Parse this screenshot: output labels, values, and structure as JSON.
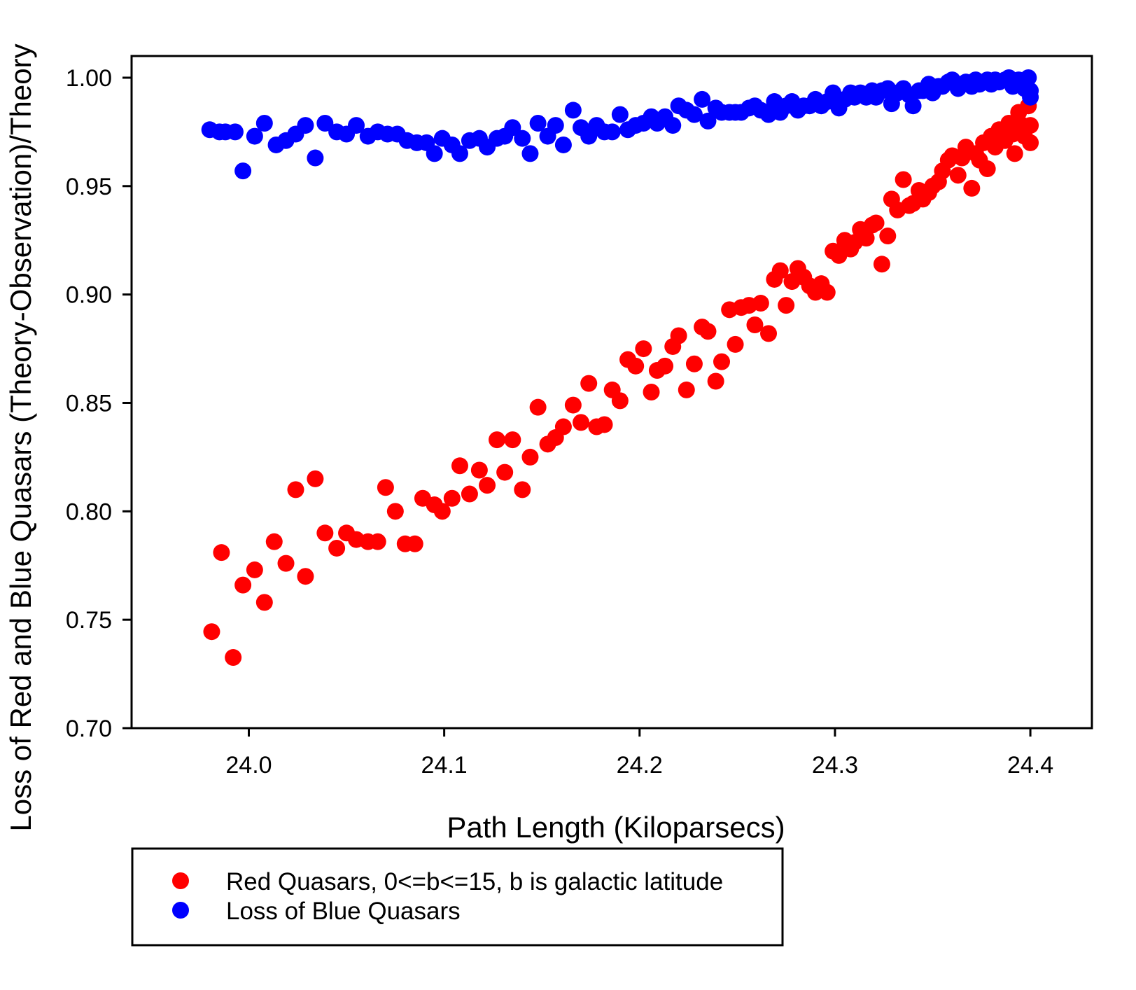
{
  "chart_data": {
    "type": "scatter",
    "title": "",
    "xlabel": "Path Length (Kiloparsecs)",
    "ylabel": "Loss of Red and Blue Quasars (Theory-Observation)/Theory",
    "xlim": [
      23.94,
      24.4315
    ],
    "ylim": [
      0.7,
      1.01
    ],
    "xticks": [
      24.0,
      24.1,
      24.2,
      24.3,
      24.4
    ],
    "xtick_labels": [
      "24.0",
      "24.1",
      "24.2",
      "24.3",
      "24.4"
    ],
    "yticks": [
      0.7,
      0.75,
      0.8,
      0.85,
      0.9,
      0.95,
      1.0
    ],
    "ytick_labels": [
      "0.70",
      "0.75",
      "0.80",
      "0.85",
      "0.90",
      "0.95",
      "1.00"
    ],
    "grid": false,
    "legend_placement": "bottom-left, below plot",
    "series": [
      {
        "name": "Red Quasars, 0<=b<=15, b is galactic latitude",
        "color": "#ff0000",
        "points": [
          [
            23.981,
            0.7445
          ],
          [
            23.992,
            0.7326
          ],
          [
            23.986,
            0.781
          ],
          [
            23.997,
            0.766
          ],
          [
            24.003,
            0.773
          ],
          [
            24.008,
            0.758
          ],
          [
            24.013,
            0.786
          ],
          [
            24.019,
            0.776
          ],
          [
            24.024,
            0.81
          ],
          [
            24.029,
            0.77
          ],
          [
            24.034,
            0.815
          ],
          [
            24.039,
            0.79
          ],
          [
            24.045,
            0.783
          ],
          [
            24.05,
            0.79
          ],
          [
            24.055,
            0.787
          ],
          [
            24.061,
            0.786
          ],
          [
            24.066,
            0.786
          ],
          [
            24.07,
            0.811
          ],
          [
            24.075,
            0.8
          ],
          [
            24.08,
            0.785
          ],
          [
            24.085,
            0.785
          ],
          [
            24.089,
            0.806
          ],
          [
            24.095,
            0.803
          ],
          [
            24.099,
            0.8
          ],
          [
            24.104,
            0.806
          ],
          [
            24.108,
            0.821
          ],
          [
            24.113,
            0.808
          ],
          [
            24.118,
            0.819
          ],
          [
            24.122,
            0.812
          ],
          [
            24.127,
            0.833
          ],
          [
            24.131,
            0.818
          ],
          [
            24.135,
            0.833
          ],
          [
            24.14,
            0.81
          ],
          [
            24.144,
            0.825
          ],
          [
            24.148,
            0.848
          ],
          [
            24.153,
            0.831
          ],
          [
            24.157,
            0.834
          ],
          [
            24.161,
            0.839
          ],
          [
            24.166,
            0.849
          ],
          [
            24.17,
            0.841
          ],
          [
            24.174,
            0.859
          ],
          [
            24.178,
            0.839
          ],
          [
            24.182,
            0.84
          ],
          [
            24.186,
            0.856
          ],
          [
            24.19,
            0.851
          ],
          [
            24.194,
            0.87
          ],
          [
            24.198,
            0.867
          ],
          [
            24.202,
            0.875
          ],
          [
            24.206,
            0.855
          ],
          [
            24.209,
            0.865
          ],
          [
            24.213,
            0.867
          ],
          [
            24.217,
            0.876
          ],
          [
            24.22,
            0.881
          ],
          [
            24.224,
            0.856
          ],
          [
            24.228,
            0.868
          ],
          [
            24.232,
            0.885
          ],
          [
            24.235,
            0.883
          ],
          [
            24.239,
            0.86
          ],
          [
            24.242,
            0.869
          ],
          [
            24.246,
            0.893
          ],
          [
            24.249,
            0.877
          ],
          [
            24.252,
            0.894
          ],
          [
            24.256,
            0.895
          ],
          [
            24.259,
            0.886
          ],
          [
            24.262,
            0.896
          ],
          [
            24.266,
            0.882
          ],
          [
            24.269,
            0.907
          ],
          [
            24.272,
            0.911
          ],
          [
            24.275,
            0.895
          ],
          [
            24.278,
            0.906
          ],
          [
            24.281,
            0.912
          ],
          [
            24.284,
            0.908
          ],
          [
            24.287,
            0.904
          ],
          [
            24.29,
            0.901
          ],
          [
            24.293,
            0.905
          ],
          [
            24.296,
            0.901
          ],
          [
            24.299,
            0.92
          ],
          [
            24.302,
            0.918
          ],
          [
            24.305,
            0.925
          ],
          [
            24.308,
            0.921
          ],
          [
            24.31,
            0.924
          ],
          [
            24.313,
            0.93
          ],
          [
            24.316,
            0.926
          ],
          [
            24.319,
            0.932
          ],
          [
            24.321,
            0.933
          ],
          [
            24.324,
            0.914
          ],
          [
            24.327,
            0.927
          ],
          [
            24.329,
            0.944
          ],
          [
            24.332,
            0.939
          ],
          [
            24.335,
            0.953
          ],
          [
            24.338,
            0.941
          ],
          [
            24.34,
            0.942
          ],
          [
            24.343,
            0.948
          ],
          [
            24.345,
            0.944
          ],
          [
            24.348,
            0.947
          ],
          [
            24.35,
            0.95
          ],
          [
            24.353,
            0.952
          ],
          [
            24.355,
            0.957
          ],
          [
            24.358,
            0.962
          ],
          [
            24.36,
            0.964
          ],
          [
            24.363,
            0.955
          ],
          [
            24.365,
            0.963
          ],
          [
            24.367,
            0.968
          ],
          [
            24.37,
            0.949
          ],
          [
            24.372,
            0.965
          ],
          [
            24.374,
            0.962
          ],
          [
            24.376,
            0.97
          ],
          [
            24.378,
            0.958
          ],
          [
            24.38,
            0.973
          ],
          [
            24.382,
            0.968
          ],
          [
            24.384,
            0.976
          ],
          [
            24.387,
            0.971
          ],
          [
            24.389,
            0.979
          ],
          [
            24.391,
            0.974
          ],
          [
            24.392,
            0.965
          ],
          [
            24.394,
            0.984
          ],
          [
            24.396,
            0.978
          ],
          [
            24.397,
            0.973
          ],
          [
            24.399,
            0.987
          ],
          [
            24.4,
            0.97
          ],
          [
            24.4,
            0.978
          ]
        ]
      },
      {
        "name": "Loss of Blue Quasars",
        "color": "#0000ff",
        "points": [
          [
            23.98,
            0.976
          ],
          [
            23.985,
            0.975
          ],
          [
            23.988,
            0.975
          ],
          [
            23.993,
            0.975
          ],
          [
            23.997,
            0.957
          ],
          [
            24.003,
            0.973
          ],
          [
            24.008,
            0.979
          ],
          [
            24.014,
            0.969
          ],
          [
            24.019,
            0.971
          ],
          [
            24.024,
            0.974
          ],
          [
            24.029,
            0.978
          ],
          [
            24.034,
            0.963
          ],
          [
            24.039,
            0.979
          ],
          [
            24.045,
            0.975
          ],
          [
            24.05,
            0.974
          ],
          [
            24.055,
            0.978
          ],
          [
            24.061,
            0.973
          ],
          [
            24.066,
            0.975
          ],
          [
            24.071,
            0.974
          ],
          [
            24.076,
            0.974
          ],
          [
            24.081,
            0.971
          ],
          [
            24.086,
            0.97
          ],
          [
            24.091,
            0.97
          ],
          [
            24.095,
            0.965
          ],
          [
            24.099,
            0.972
          ],
          [
            24.104,
            0.969
          ],
          [
            24.108,
            0.965
          ],
          [
            24.113,
            0.971
          ],
          [
            24.118,
            0.972
          ],
          [
            24.122,
            0.968
          ],
          [
            24.127,
            0.972
          ],
          [
            24.131,
            0.973
          ],
          [
            24.135,
            0.977
          ],
          [
            24.14,
            0.972
          ],
          [
            24.144,
            0.965
          ],
          [
            24.148,
            0.979
          ],
          [
            24.153,
            0.973
          ],
          [
            24.157,
            0.978
          ],
          [
            24.161,
            0.969
          ],
          [
            24.166,
            0.985
          ],
          [
            24.17,
            0.977
          ],
          [
            24.174,
            0.973
          ],
          [
            24.178,
            0.978
          ],
          [
            24.182,
            0.975
          ],
          [
            24.186,
            0.975
          ],
          [
            24.19,
            0.983
          ],
          [
            24.194,
            0.976
          ],
          [
            24.198,
            0.978
          ],
          [
            24.202,
            0.979
          ],
          [
            24.206,
            0.982
          ],
          [
            24.209,
            0.979
          ],
          [
            24.213,
            0.982
          ],
          [
            24.217,
            0.978
          ],
          [
            24.22,
            0.987
          ],
          [
            24.224,
            0.985
          ],
          [
            24.228,
            0.983
          ],
          [
            24.232,
            0.99
          ],
          [
            24.235,
            0.98
          ],
          [
            24.239,
            0.986
          ],
          [
            24.242,
            0.984
          ],
          [
            24.246,
            0.984
          ],
          [
            24.249,
            0.984
          ],
          [
            24.252,
            0.984
          ],
          [
            24.256,
            0.986
          ],
          [
            24.259,
            0.987
          ],
          [
            24.262,
            0.985
          ],
          [
            24.266,
            0.983
          ],
          [
            24.269,
            0.989
          ],
          [
            24.272,
            0.984
          ],
          [
            24.275,
            0.987
          ],
          [
            24.278,
            0.989
          ],
          [
            24.281,
            0.985
          ],
          [
            24.284,
            0.987
          ],
          [
            24.287,
            0.987
          ],
          [
            24.29,
            0.99
          ],
          [
            24.293,
            0.987
          ],
          [
            24.296,
            0.989
          ],
          [
            24.299,
            0.993
          ],
          [
            24.302,
            0.986
          ],
          [
            24.305,
            0.99
          ],
          [
            24.308,
            0.993
          ],
          [
            24.31,
            0.991
          ],
          [
            24.313,
            0.993
          ],
          [
            24.316,
            0.991
          ],
          [
            24.319,
            0.994
          ],
          [
            24.321,
            0.991
          ],
          [
            24.324,
            0.994
          ],
          [
            24.327,
            0.995
          ],
          [
            24.329,
            0.988
          ],
          [
            24.332,
            0.993
          ],
          [
            24.335,
            0.995
          ],
          [
            24.338,
            0.992
          ],
          [
            24.34,
            0.987
          ],
          [
            24.343,
            0.994
          ],
          [
            24.345,
            0.994
          ],
          [
            24.348,
            0.997
          ],
          [
            24.35,
            0.993
          ],
          [
            24.353,
            0.996
          ],
          [
            24.355,
            0.996
          ],
          [
            24.358,
            0.998
          ],
          [
            24.36,
            0.999
          ],
          [
            24.363,
            0.995
          ],
          [
            24.365,
            0.997
          ],
          [
            24.367,
            0.998
          ],
          [
            24.37,
            0.996
          ],
          [
            24.372,
            0.999
          ],
          [
            24.374,
            0.997
          ],
          [
            24.376,
            0.998
          ],
          [
            24.378,
            0.999
          ],
          [
            24.38,
            0.997
          ],
          [
            24.382,
            0.999
          ],
          [
            24.384,
            0.998
          ],
          [
            24.387,
            0.999
          ],
          [
            24.389,
            1.0
          ],
          [
            24.391,
            0.996
          ],
          [
            24.392,
            0.998
          ],
          [
            24.394,
            0.999
          ],
          [
            24.396,
            0.998
          ],
          [
            24.397,
            0.995
          ],
          [
            24.399,
            1.0
          ],
          [
            24.4,
            0.994
          ],
          [
            24.4,
            0.991
          ]
        ]
      }
    ]
  }
}
